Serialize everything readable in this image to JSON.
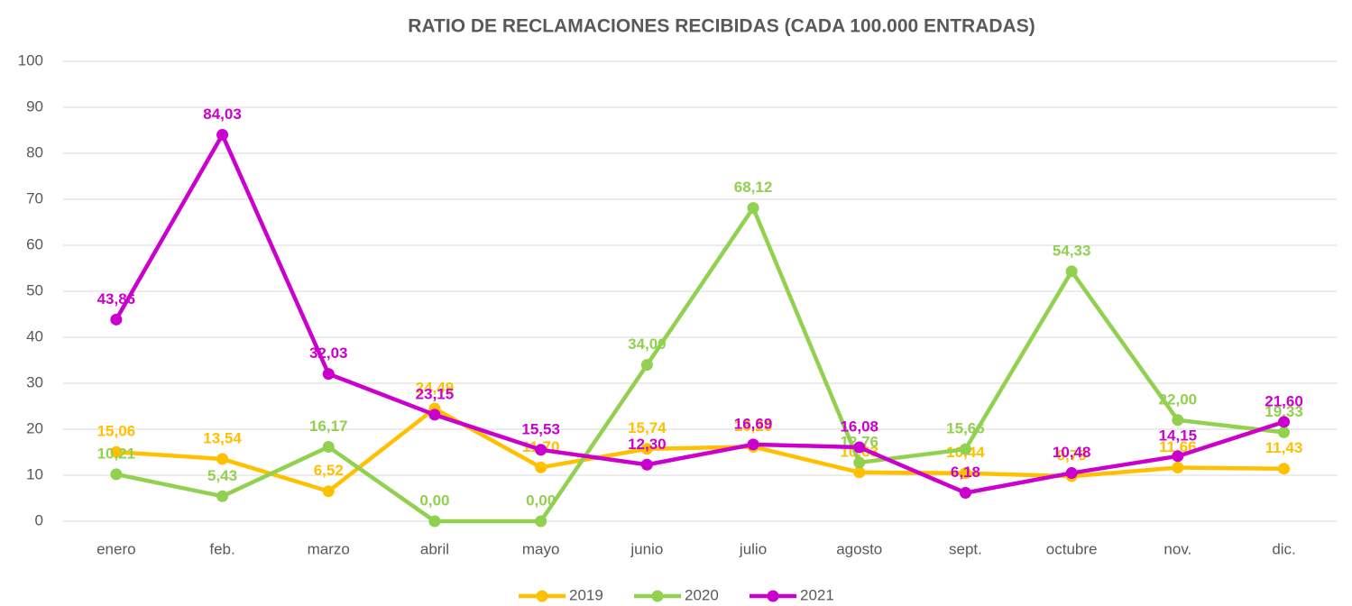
{
  "chart_data": {
    "type": "line",
    "title": "RATIO DE RECLAMACIONES RECIBIDAS (CADA 100.000 ENTRADAS)",
    "categories": [
      "enero",
      "feb.",
      "marzo",
      "abril",
      "mayo",
      "junio",
      "julio",
      "agosto",
      "sept.",
      "octubre",
      "nov.",
      "dic."
    ],
    "series": [
      {
        "name": "2019",
        "color": "#FFC000",
        "values": [
          15.06,
          13.54,
          6.52,
          24.49,
          11.7,
          15.74,
          16.2,
          10.63,
          10.44,
          9.79,
          11.66,
          11.43
        ],
        "value_labels": [
          "15,06",
          "13,54",
          "6,52",
          "24,49",
          "11,70",
          "15,74",
          "16,20",
          "10,63",
          "10,44",
          "9,79",
          "11,66",
          "11,43"
        ]
      },
      {
        "name": "2020",
        "color": "#92D050",
        "values": [
          10.21,
          5.43,
          16.17,
          0,
          0,
          34,
          68.12,
          12.76,
          15.66,
          54.33,
          22,
          19.33
        ],
        "value_labels": [
          "10,21",
          "5,43",
          "16,17",
          "0,00",
          "0,00",
          "34,00",
          "68,12",
          "12,76",
          "15,66",
          "54,33",
          "22,00",
          "19,33"
        ]
      },
      {
        "name": "2021",
        "color": "#CC00CC",
        "values": [
          43.86,
          84.03,
          32.03,
          23.15,
          15.53,
          12.3,
          16.69,
          16.08,
          6.18,
          10.48,
          14.15,
          21.6
        ],
        "value_labels": [
          "43,86",
          "84,03",
          "32,03",
          "23,15",
          "15,53",
          "12,30",
          "16,69",
          "16,08",
          "6,18",
          "10,48",
          "14,15",
          "21,60"
        ]
      }
    ],
    "ylim": [
      0,
      100
    ],
    "yticks": [
      0,
      10,
      20,
      30,
      40,
      50,
      60,
      70,
      80,
      90,
      100
    ],
    "grid": true,
    "legend": "bottom"
  }
}
